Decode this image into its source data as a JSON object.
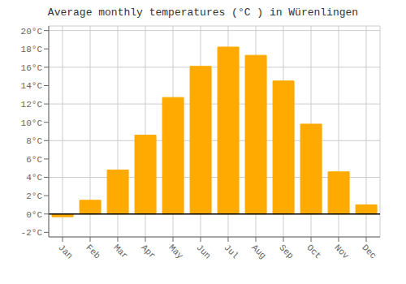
{
  "chart_data": {
    "type": "bar",
    "title": "Average monthly temperatures (°C ) in Würenlingen",
    "categories": [
      "Jan",
      "Feb",
      "Mar",
      "Apr",
      "May",
      "Jun",
      "Jul",
      "Aug",
      "Sep",
      "Oct",
      "Nov",
      "Dec"
    ],
    "values": [
      -0.3,
      1.5,
      4.8,
      8.6,
      12.7,
      16.1,
      18.2,
      17.3,
      14.5,
      9.8,
      4.6,
      1.0
    ],
    "color": "#FFAA00",
    "ylim": [
      -2.5,
      20.5
    ],
    "yticks": [
      {
        "value": -2,
        "label": "-2°C"
      },
      {
        "value": 0,
        "label": "0°C"
      },
      {
        "value": 2,
        "label": "2°C"
      },
      {
        "value": 4,
        "label": "4°C"
      },
      {
        "value": 6,
        "label": "6°C"
      },
      {
        "value": 8,
        "label": "8°C"
      },
      {
        "value": 10,
        "label": "10°C"
      },
      {
        "value": 12,
        "label": "12°C"
      },
      {
        "value": 14,
        "label": "14°C"
      },
      {
        "value": 16,
        "label": "16°C"
      },
      {
        "value": 18,
        "label": "18°C"
      },
      {
        "value": 20,
        "label": "20°C"
      }
    ],
    "grid": true
  }
}
